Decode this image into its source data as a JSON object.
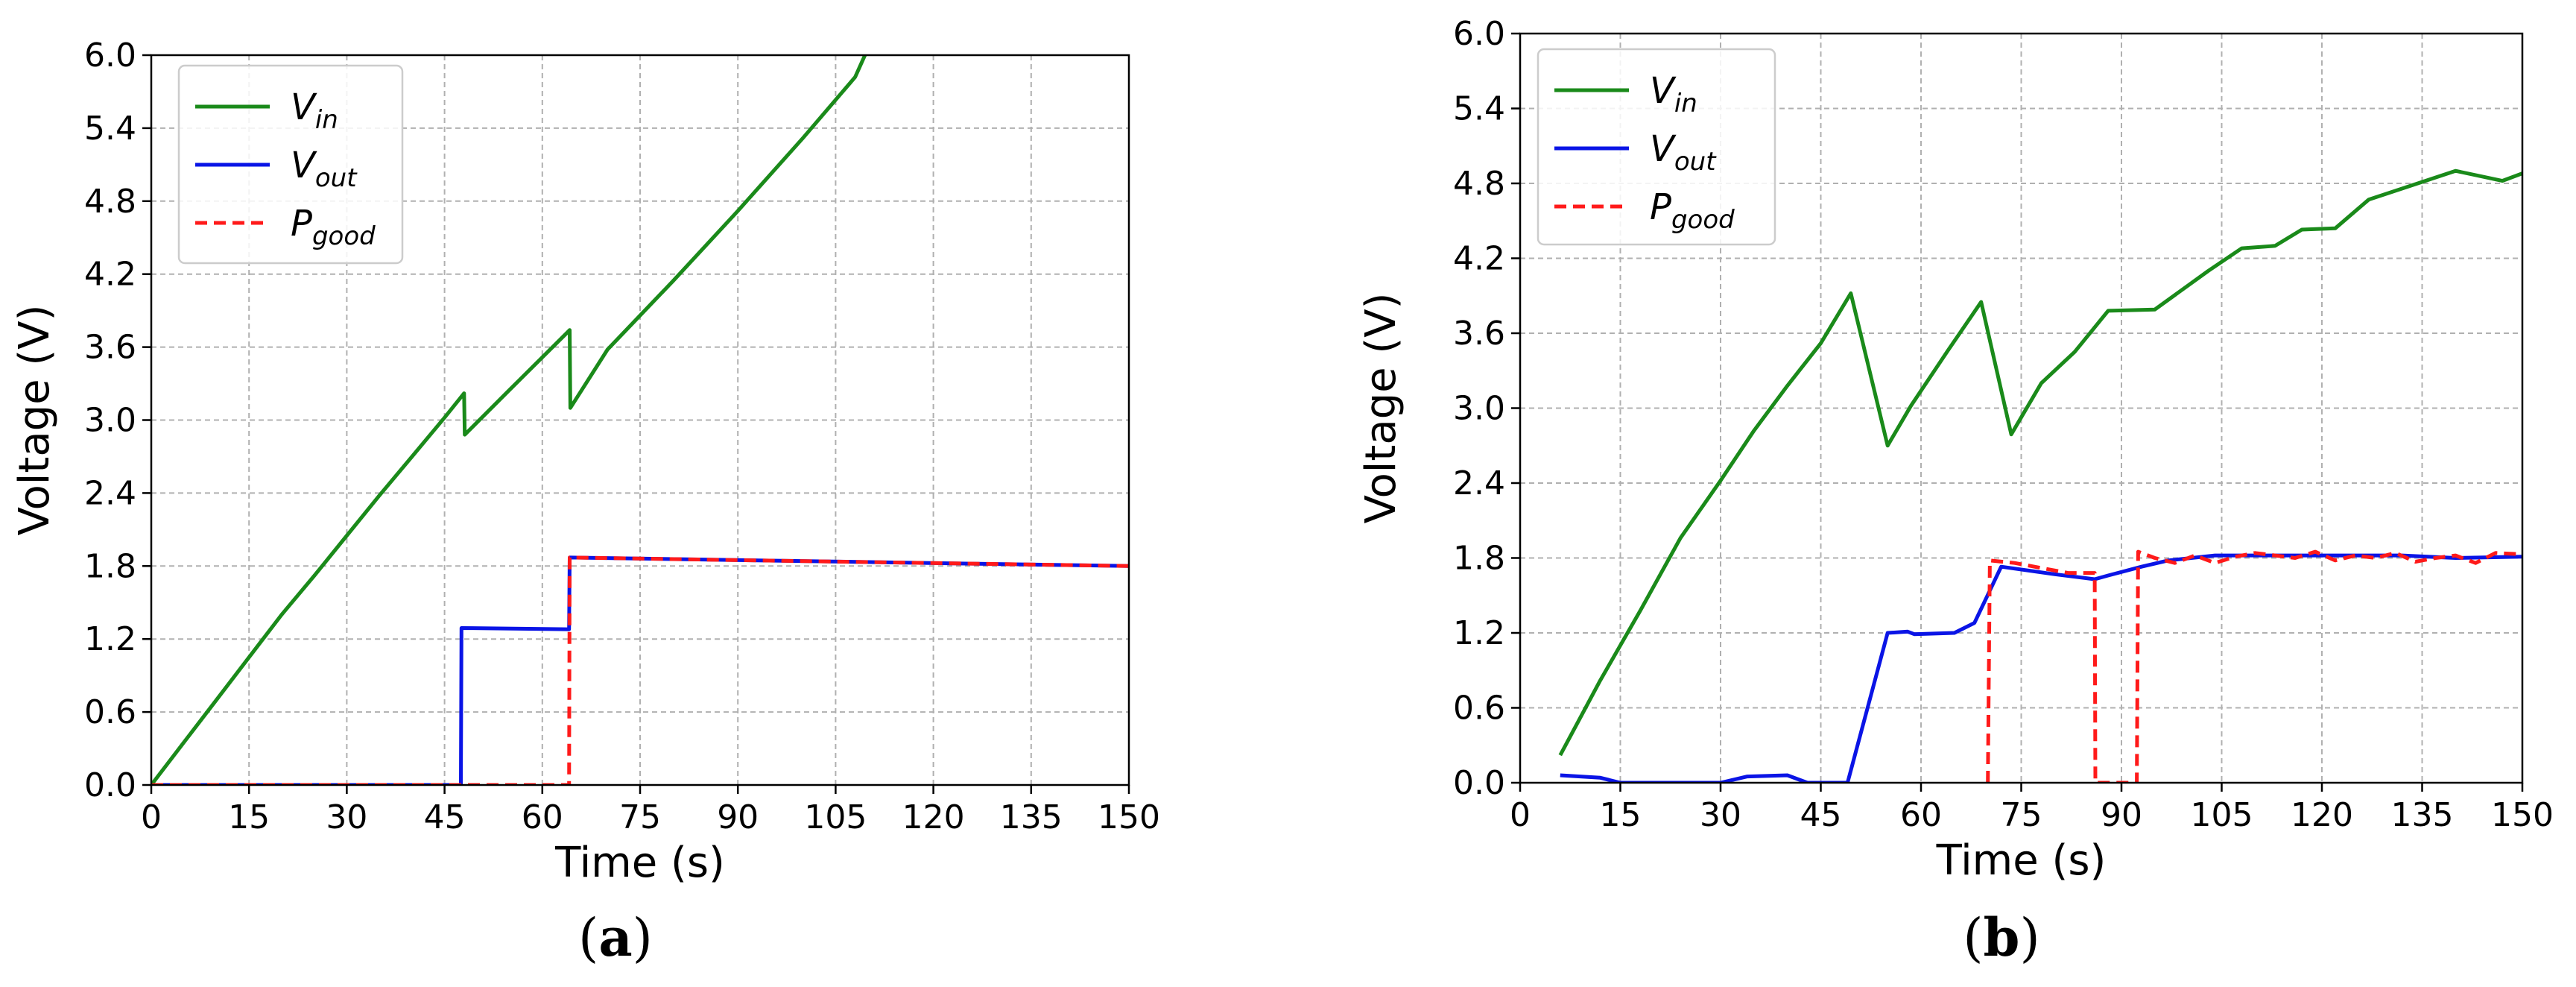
{
  "chart_data": [
    {
      "type": "line",
      "panel_label": "a",
      "xlabel": "Time (s)",
      "ylabel": "Voltage (V)",
      "xlim": [
        0,
        150
      ],
      "ylim": [
        0,
        6.0
      ],
      "xticks": [
        "0",
        "15",
        "30",
        "45",
        "60",
        "75",
        "90",
        "105",
        "120",
        "135",
        "150"
      ],
      "yticks": [
        "0.0",
        "0.6",
        "1.2",
        "1.8",
        "2.4",
        "3.0",
        "3.6",
        "4.2",
        "4.8",
        "5.4",
        "6.0"
      ],
      "grid": true,
      "legend_position": "top-left",
      "series": [
        {
          "name": "V",
          "subscript": "in",
          "color": "#1a8a1a",
          "style": "solid",
          "points": [
            [
              0,
              0
            ],
            [
              5,
              0.35
            ],
            [
              10,
              0.7
            ],
            [
              15,
              1.05
            ],
            [
              20,
              1.4
            ],
            [
              25,
              1.72
            ],
            [
              30,
              2.05
            ],
            [
              35,
              2.38
            ],
            [
              40,
              2.7
            ],
            [
              45,
              3.02
            ],
            [
              48,
              3.22
            ],
            [
              48.1,
              2.88
            ],
            [
              55,
              3.25
            ],
            [
              64.2,
              3.74
            ],
            [
              64.3,
              3.1
            ],
            [
              70,
              3.58
            ],
            [
              80,
              4.14
            ],
            [
              90,
              4.72
            ],
            [
              100,
              5.32
            ],
            [
              108,
              5.82
            ],
            [
              109.5,
              6.0
            ]
          ]
        },
        {
          "name": "V",
          "subscript": "out",
          "color": "#0a14e6",
          "style": "solid",
          "points": [
            [
              0,
              0
            ],
            [
              47.5,
              0
            ],
            [
              47.6,
              1.29
            ],
            [
              64.1,
              1.28
            ],
            [
              64.2,
              1.87
            ],
            [
              150,
              1.8
            ]
          ]
        },
        {
          "name": "P",
          "subscript": "good",
          "color": "#ff1a1a",
          "style": "dashed",
          "points": [
            [
              0,
              0
            ],
            [
              64.1,
              0
            ],
            [
              64.2,
              1.87
            ],
            [
              150,
              1.8
            ]
          ]
        }
      ]
    },
    {
      "type": "line",
      "panel_label": "b",
      "xlabel": "Time (s)",
      "ylabel": "Voltage (V)",
      "xlim": [
        0,
        150
      ],
      "ylim": [
        0,
        6.0
      ],
      "xticks": [
        "0",
        "15",
        "30",
        "45",
        "60",
        "75",
        "90",
        "105",
        "120",
        "135",
        "150"
      ],
      "yticks": [
        "0.0",
        "0.6",
        "1.2",
        "1.8",
        "2.4",
        "3.0",
        "3.6",
        "4.2",
        "4.8",
        "5.4",
        "6.0"
      ],
      "grid": true,
      "legend_position": "top-left",
      "series": [
        {
          "name": "V",
          "subscript": "in",
          "color": "#1a8a1a",
          "style": "solid",
          "points": [
            [
              6,
              0.22
            ],
            [
              12,
              0.82
            ],
            [
              18,
              1.38
            ],
            [
              24,
              1.96
            ],
            [
              30,
              2.42
            ],
            [
              35,
              2.82
            ],
            [
              40,
              3.18
            ],
            [
              45,
              3.52
            ],
            [
              49.5,
              3.92
            ],
            [
              55,
              2.7
            ],
            [
              58.5,
              3.02
            ],
            [
              64,
              3.46
            ],
            [
              69,
              3.85
            ],
            [
              73.5,
              2.79
            ],
            [
              78,
              3.2
            ],
            [
              83,
              3.45
            ],
            [
              88,
              3.78
            ],
            [
              95,
              3.79
            ],
            [
              103,
              4.1
            ],
            [
              108,
              4.28
            ],
            [
              113,
              4.3
            ],
            [
              117,
              4.43
            ],
            [
              122,
              4.44
            ],
            [
              127,
              4.67
            ],
            [
              140,
              4.9
            ],
            [
              147,
              4.82
            ],
            [
              150,
              4.88
            ]
          ]
        },
        {
          "name": "V",
          "subscript": "out",
          "color": "#0a14e6",
          "style": "solid",
          "points": [
            [
              6,
              0.06
            ],
            [
              12,
              0.04
            ],
            [
              15,
              0.0
            ],
            [
              30,
              0.0
            ],
            [
              34,
              0.05
            ],
            [
              40,
              0.06
            ],
            [
              43,
              0.0
            ],
            [
              49,
              0.0
            ],
            [
              55,
              1.2
            ],
            [
              58,
              1.21
            ],
            [
              59,
              1.19
            ],
            [
              65,
              1.2
            ],
            [
              68,
              1.28
            ],
            [
              72,
              1.73
            ],
            [
              80,
              1.67
            ],
            [
              86,
              1.63
            ],
            [
              88,
              1.66
            ],
            [
              93,
              1.73
            ],
            [
              97,
              1.78
            ],
            [
              104,
              1.82
            ],
            [
              110,
              1.82
            ],
            [
              120,
              1.82
            ],
            [
              132,
              1.82
            ],
            [
              140,
              1.8
            ],
            [
              150,
              1.81
            ]
          ]
        },
        {
          "name": "P",
          "subscript": "good",
          "color": "#ff1a1a",
          "style": "dashed",
          "points": [
            [
              70,
              0.0
            ],
            [
              70.3,
              1.78
            ],
            [
              74,
              1.76
            ],
            [
              78,
              1.72
            ],
            [
              82,
              1.68
            ],
            [
              86,
              1.68
            ],
            [
              86.1,
              0.0
            ],
            [
              92.3,
              0.0
            ],
            [
              92.5,
              1.85
            ],
            [
              95,
              1.8
            ],
            [
              98,
              1.76
            ],
            [
              101,
              1.82
            ],
            [
              104,
              1.76
            ],
            [
              107,
              1.81
            ],
            [
              110,
              1.84
            ],
            [
              113,
              1.82
            ],
            [
              116,
              1.8
            ],
            [
              119,
              1.85
            ],
            [
              122,
              1.78
            ],
            [
              125,
              1.82
            ],
            [
              128,
              1.8
            ],
            [
              131,
              1.84
            ],
            [
              134,
              1.77
            ],
            [
              137,
              1.8
            ],
            [
              140,
              1.82
            ],
            [
              143,
              1.76
            ],
            [
              146,
              1.84
            ],
            [
              150,
              1.83
            ]
          ]
        }
      ]
    }
  ]
}
